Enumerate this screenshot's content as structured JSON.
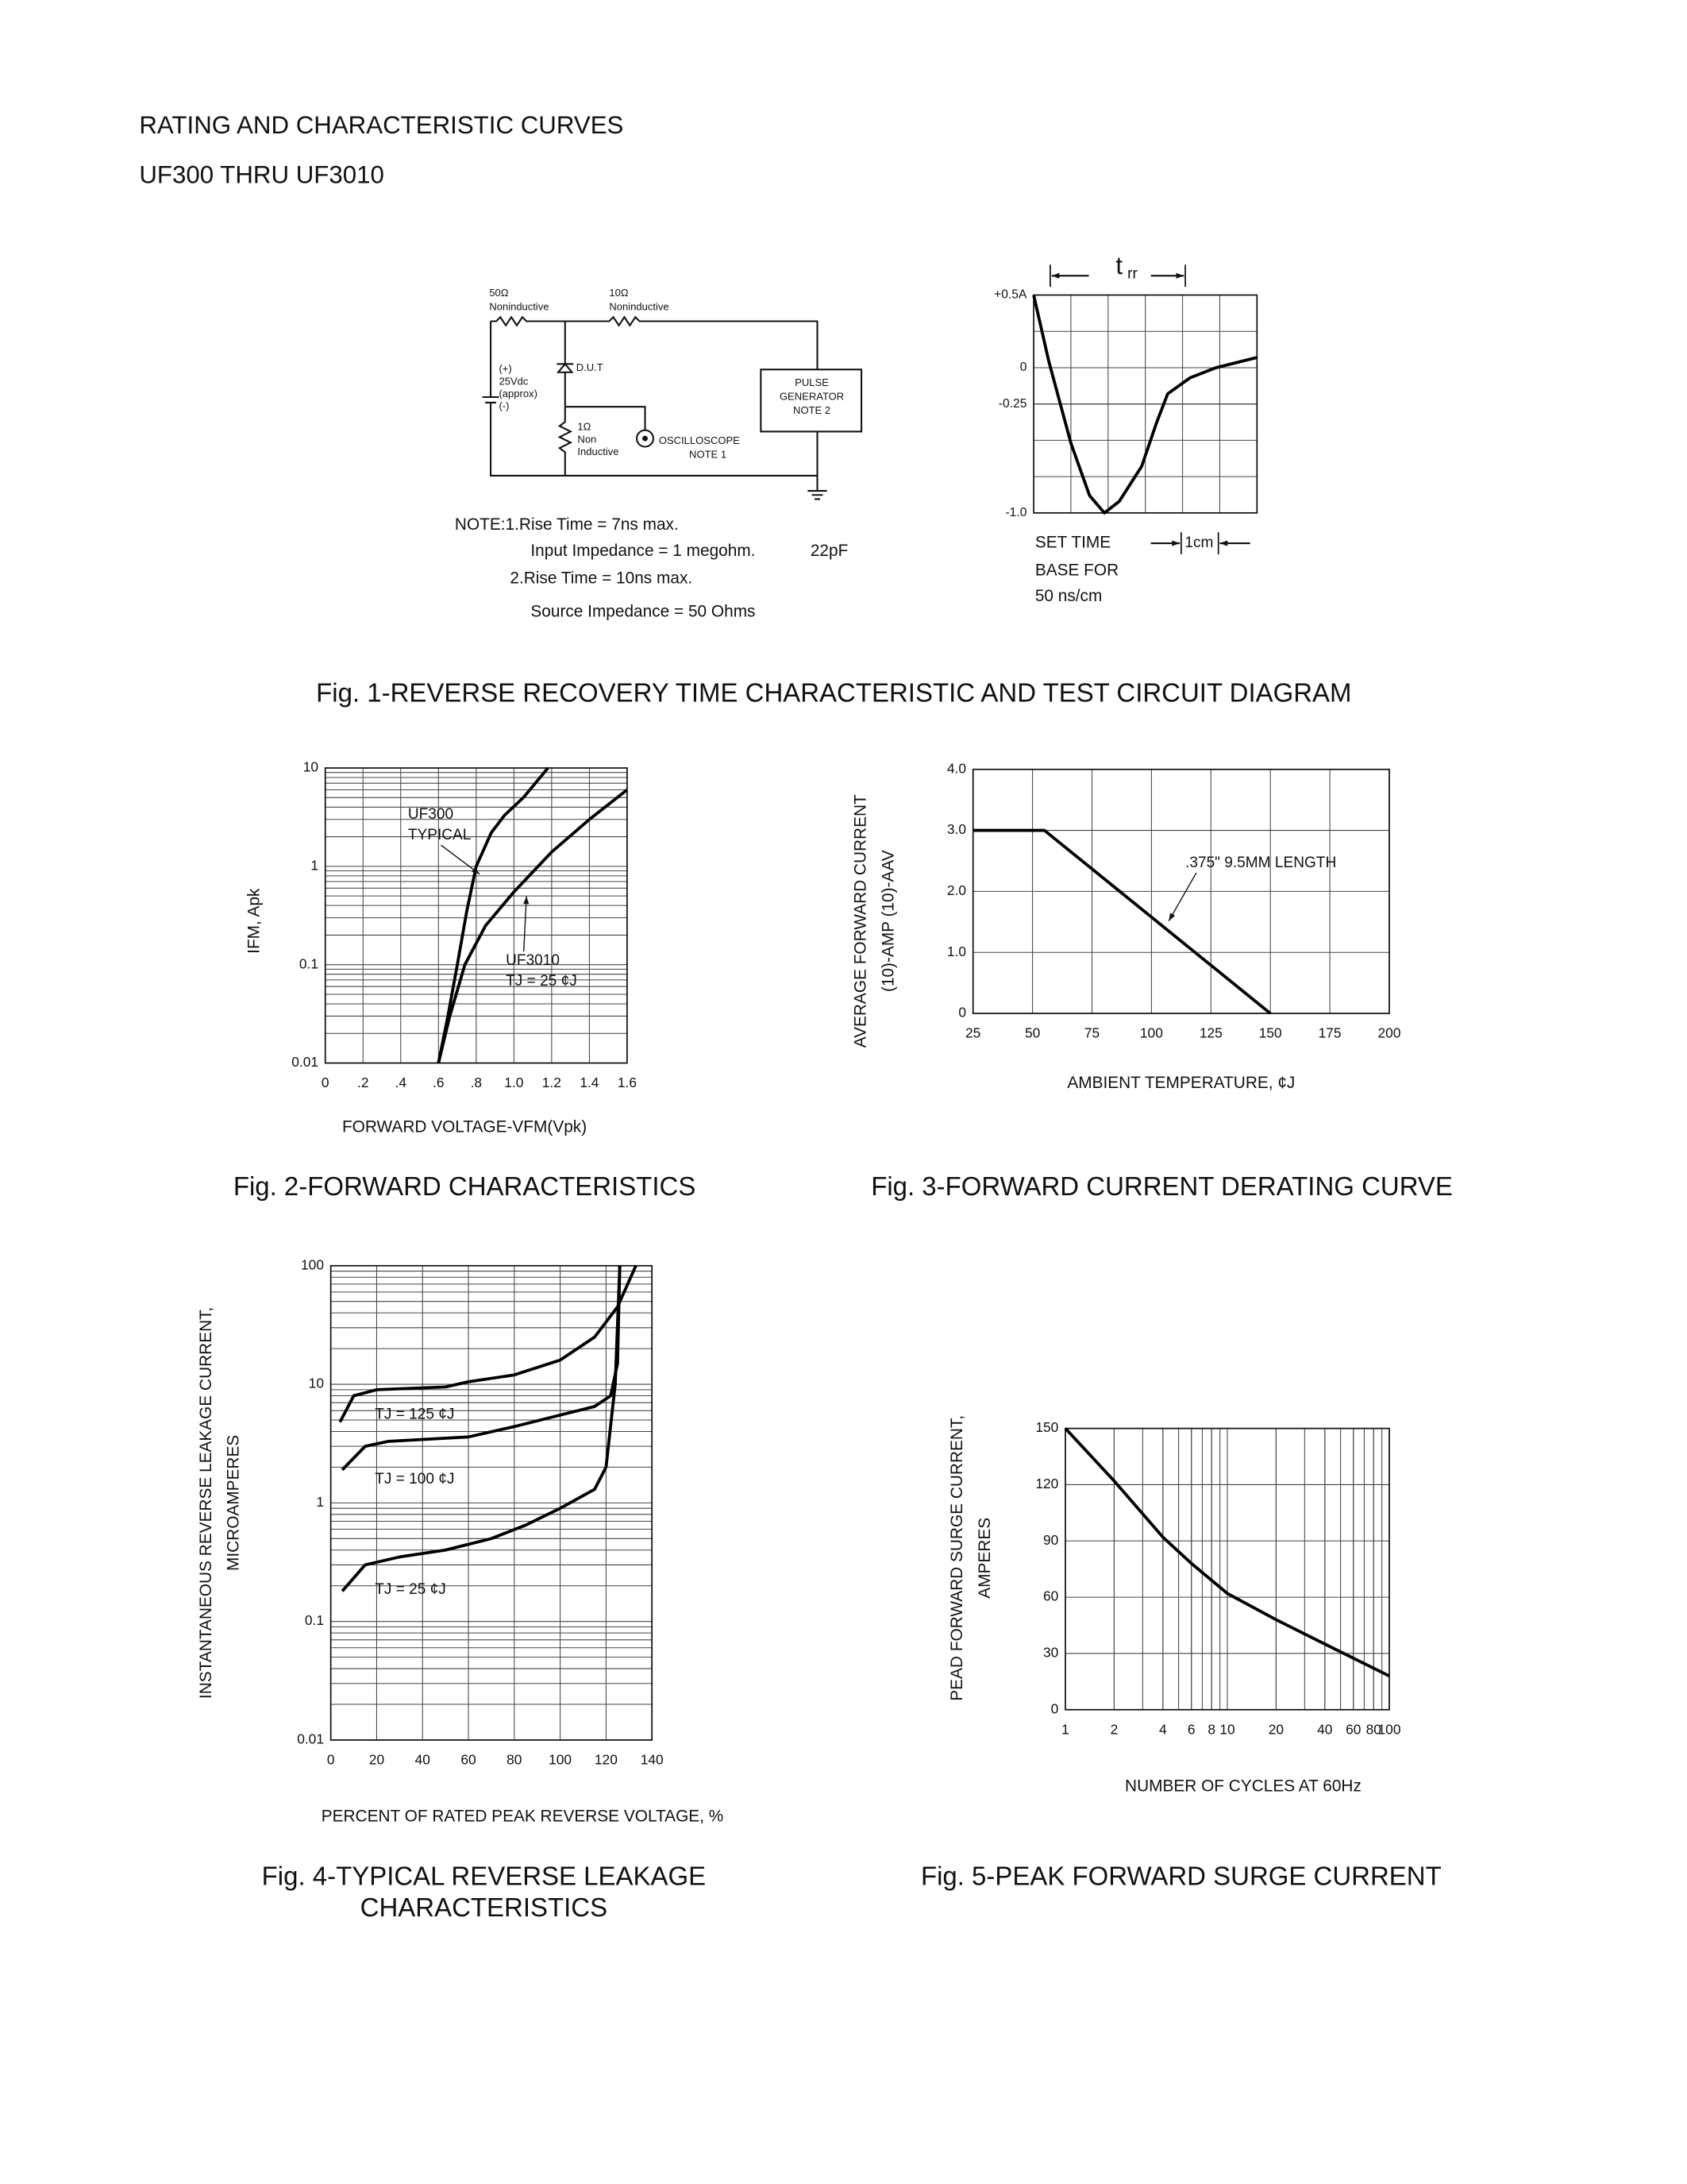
{
  "header": {
    "title": "RATING AND CHARACTERISTIC CURVES",
    "subtitle": "UF300 THRU UF3010"
  },
  "fig1": {
    "caption": "Fig. 1-REVERSE RECOVERY TIME CHARACTERISTIC AND TEST CIRCUIT DIAGRAM",
    "circuit": {
      "r50": [
        "50Ω",
        "Noninductive"
      ],
      "r10": [
        "10Ω",
        "Noninductive"
      ],
      "supply": [
        "(+)",
        "25Vdc",
        "(approx)",
        "(-)"
      ],
      "dut": "D.U.T",
      "generator": [
        "PULSE",
        "GENERATOR",
        "NOTE 2"
      ],
      "r1": [
        "1Ω",
        "Non",
        "Inductive"
      ],
      "scope": [
        "OSCILLOSCOPE",
        "NOTE 1"
      ]
    },
    "notes": [
      "NOTE:1.Rise Time = 7ns max.",
      "Input Impedance = 1 megohm.",
      "22pF",
      "2.Rise Time = 10ns max.",
      "Source Impedance = 50 Ohms"
    ]
  },
  "chart_data": [
    {
      "type": "line",
      "xlim": [
        0,
        6
      ],
      "ylim": [
        -1.0,
        0.5
      ],
      "yticks": [
        {
          "value": 0.5,
          "label": "+0.5A"
        },
        0,
        -0.25,
        {
          "value": -1.0,
          "label": "-1.0"
        }
      ],
      "xgrid_step": 1,
      "ygrid_step": 0.25,
      "annotations": [
        "t",
        "rr",
        "SET TIME",
        "BASE FOR",
        "50 ns/cm",
        "1cm"
      ],
      "series": [
        {
          "color": "#000000",
          "x": [
            0,
            0.4,
            1.0,
            1.5,
            1.9,
            2.3,
            2.9,
            3.3,
            3.6,
            4.2,
            4.9,
            6
          ],
          "values": [
            0.5,
            0.05,
            -0.52,
            -0.88,
            -1.0,
            -0.92,
            -0.68,
            -0.38,
            -0.18,
            -0.07,
            0,
            0.07
          ]
        }
      ]
    },
    {
      "type": "line",
      "title": "Fig. 2-FORWARD CHARACTERISTICS",
      "x_label": "FORWARD VOLTAGE-VFM(Vpk)",
      "y_label": [
        "IFM, Apk"
      ],
      "ylog": true,
      "minor_grid": true,
      "xlim": [
        0,
        1.6
      ],
      "ylim": [
        0.01,
        10
      ],
      "xticks": [
        0,
        {
          "value": 0.2,
          "label": ".2"
        },
        {
          "value": 0.4,
          "label": ".4"
        },
        {
          "value": 0.6,
          "label": ".6"
        },
        {
          "value": 0.8,
          "label": ".8"
        },
        {
          "value": 1.0,
          "label": "1.0"
        },
        {
          "value": 1.2,
          "label": "1.2"
        },
        {
          "value": 1.4,
          "label": "1.4"
        },
        {
          "value": 1.6,
          "label": "1.6"
        }
      ],
      "yticks": [
        0.01,
        0.1,
        1,
        10
      ],
      "annotations": [
        "UF300",
        "TYPICAL",
        "UF3010",
        "TJ = 25 ¢J"
      ],
      "series": [
        {
          "color": "#000000",
          "x": [
            0.6,
            0.65,
            0.7,
            0.75,
            0.8,
            0.88,
            0.95,
            1.05,
            1.15,
            1.18
          ],
          "values": [
            0.01,
            0.03,
            0.1,
            0.35,
            1.0,
            2.2,
            3.3,
            5,
            8.5,
            10
          ]
        },
        {
          "color": "#000000",
          "x": [
            0.6,
            0.66,
            0.74,
            0.85,
            1.0,
            1.2,
            1.4,
            1.6
          ],
          "values": [
            0.01,
            0.03,
            0.1,
            0.25,
            0.55,
            1.4,
            3,
            6
          ]
        }
      ]
    },
    {
      "type": "line",
      "title": "Fig. 3-FORWARD CURRENT DERATING CURVE",
      "x_label": "AMBIENT TEMPERATURE, ¢J",
      "y_label": [
        "AVERAGE FORWARD CURRENT",
        "(10)-AMP (10)-AAV"
      ],
      "xlim": [
        25,
        200
      ],
      "ylim": [
        0,
        4
      ],
      "xticks": [
        25,
        50,
        75,
        100,
        125,
        150,
        175,
        200
      ],
      "yticks": [
        0,
        {
          "value": 1,
          "label": "1.0"
        },
        {
          "value": 2,
          "label": "2.0"
        },
        {
          "value": 3,
          "label": "3.0"
        },
        {
          "value": 4,
          "label": "4.0"
        }
      ],
      "annotations": [
        ".375\" 9.5MM LENGTH"
      ],
      "series": [
        {
          "color": "#000000",
          "x": [
            25,
            55,
            150
          ],
          "values": [
            3,
            3,
            0
          ]
        }
      ]
    },
    {
      "type": "line",
      "title": [
        "Fig. 4-TYPICAL REVERSE LEAKAGE",
        "CHARACTERISTICS"
      ],
      "x_label": "PERCENT OF RATED PEAK REVERSE VOLTAGE, %",
      "y_label": [
        "INSTANTANEOUS REVERSE LEAKAGE CURRENT,",
        "MICROAMPERES"
      ],
      "ylog": true,
      "minor_grid": true,
      "xlim": [
        0,
        140
      ],
      "ylim": [
        0.01,
        100
      ],
      "xticks": [
        0,
        20,
        40,
        60,
        80,
        100,
        120,
        140
      ],
      "yticks": [
        0.01,
        0.1,
        1,
        10,
        100
      ],
      "annotations": [
        "TJ = 125 ¢J",
        "TJ = 100 ¢J",
        "TJ = 25 ¢J"
      ],
      "series": [
        {
          "color": "#000000",
          "x": [
            4,
            10,
            20,
            50,
            60,
            80,
            100,
            115,
            125,
            133
          ],
          "values": [
            4.8,
            8,
            9,
            9.5,
            10.5,
            12,
            16,
            25,
            45,
            100
          ]
        },
        {
          "color": "#000000",
          "x": [
            5,
            15,
            25,
            60,
            80,
            100,
            115,
            122,
            125,
            126
          ],
          "values": [
            1.9,
            3,
            3.3,
            3.6,
            4.4,
            5.5,
            6.5,
            8,
            15,
            100
          ]
        },
        {
          "color": "#000000",
          "x": [
            5,
            15,
            30,
            50,
            70,
            85,
            100,
            115,
            120,
            124,
            126
          ],
          "values": [
            0.18,
            0.3,
            0.35,
            0.4,
            0.5,
            0.65,
            0.9,
            1.3,
            2,
            10,
            100
          ]
        }
      ]
    },
    {
      "type": "line",
      "title": "Fig. 5-PEAK FORWARD SURGE CURRENT",
      "x_label": "NUMBER OF CYCLES AT 60Hz",
      "y_label": [
        "PEAD FORWARD SURGE CURRENT,",
        "AMPERES"
      ],
      "xlog": true,
      "minor_grid": true,
      "xlim": [
        1,
        100
      ],
      "ylim": [
        0,
        150
      ],
      "xticks": [
        1,
        2,
        4,
        6,
        8,
        10,
        20,
        40,
        60,
        80,
        100
      ],
      "yticks": [
        0,
        30,
        60,
        90,
        120,
        150
      ],
      "series": [
        {
          "color": "#000000",
          "x": [
            1,
            2,
            4,
            6,
            10,
            20,
            40,
            100
          ],
          "values": [
            150,
            122,
            92,
            78,
            62,
            48,
            35,
            18
          ]
        }
      ]
    }
  ]
}
